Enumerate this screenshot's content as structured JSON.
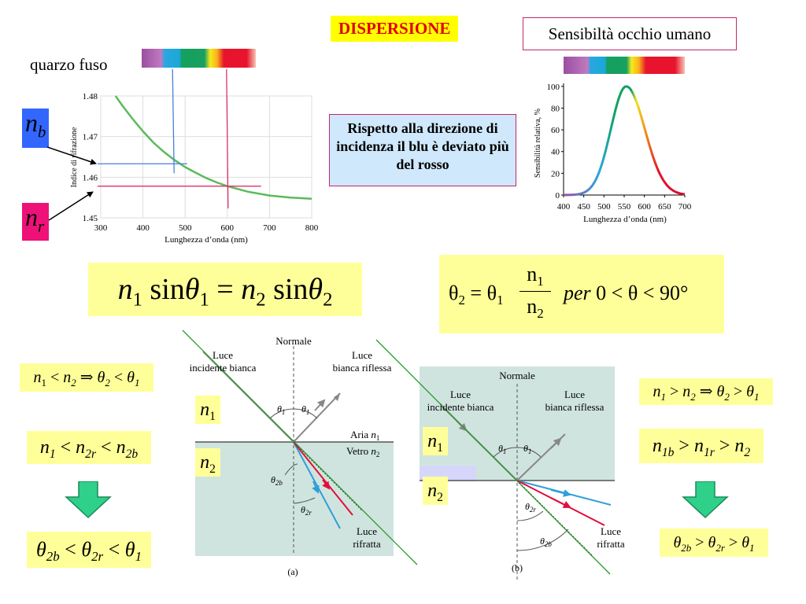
{
  "title": "DISPERSIONE",
  "eye_box_label": "Sensibiltà occhio umano",
  "material_label": "quarzo fuso",
  "note": "Rispetto alla direzione di incidenza il blu è deviato più del rosso",
  "n_b": {
    "base": "n",
    "sub": "b"
  },
  "n_r": {
    "base": "n",
    "sub": "r"
  },
  "refraction_chart": {
    "type": "line",
    "ylabel": "Indice di rifrazione",
    "xlabel": "Lunghezza d’onda (nm)",
    "x_ticks": [
      "300",
      "400",
      "500",
      "600",
      "700",
      "800"
    ],
    "y_ticks": [
      "1.48",
      "1.47",
      "1.46",
      "1.45"
    ],
    "xlim": [
      300,
      800
    ],
    "ylim": [
      1.45,
      1.48
    ],
    "curve_x": [
      335,
      350,
      375,
      400,
      425,
      450,
      475,
      500,
      525,
      550,
      575,
      600,
      650,
      700,
      750,
      800
    ],
    "curve_y": [
      1.48,
      1.4778,
      1.4744,
      1.4713,
      1.4685,
      1.4662,
      1.4642,
      1.4625,
      1.4611,
      1.4598,
      1.4587,
      1.4578,
      1.4564,
      1.4555,
      1.455,
      1.4547
    ],
    "blue_marker": {
      "x": 472,
      "y": 1.4633
    },
    "red_marker": {
      "x": 600,
      "y": 1.4578
    }
  },
  "eye_chart": {
    "type": "line",
    "ylabel": "Sensibilità relativa, %",
    "xlabel": "Lunghezza d’onda (nm)",
    "x_ticks": [
      "400",
      "450",
      "500",
      "550",
      "600",
      "650",
      "700"
    ],
    "y_ticks": [
      "0",
      "20",
      "40",
      "60",
      "80",
      "100"
    ],
    "xlim": [
      400,
      700
    ],
    "ylim": [
      0,
      110
    ],
    "peak_x": 555,
    "peak_y": 100
  },
  "snell": {
    "n1": "n",
    "s1": "1",
    "sin": "sin",
    "theta": "θ",
    "eq": "=",
    "n2": "n",
    "s2": "2"
  },
  "approx": {
    "lhs": "θ",
    "lhs_sub": "2",
    "eq": "=",
    "th1": "θ",
    "th1_sub": "1",
    "num": "n",
    "num_sub": "1",
    "den": "n",
    "den_sub": "2",
    "per": "per",
    "cond": "0 < θ < 90°"
  },
  "left_ineq1": {
    "a": "n",
    "a_sub": "1",
    "op1": " < ",
    "b": "n",
    "b_sub": "2",
    "imp": " ⇒ ",
    "c": "θ",
    "c_sub": "2",
    "op2": " < ",
    "d": "θ",
    "d_sub": "1"
  },
  "left_ineq2": {
    "a": "n",
    "a_sub": "1",
    "op1": " < ",
    "b": "n",
    "b_sub": "2r",
    "op2": " < ",
    "c": "n",
    "c_sub": "2b"
  },
  "left_ineq3": {
    "a": "θ",
    "a_sub": "2b",
    "op1": " < ",
    "b": "θ",
    "b_sub": "2r",
    "op2": " < ",
    "c": "θ",
    "c_sub": "1"
  },
  "right_ineq1": {
    "a": "n",
    "a_sub": "1",
    "op1": " > ",
    "b": "n",
    "b_sub": "2",
    "imp": " ⇒ ",
    "c": "θ",
    "c_sub": "2",
    "op2": " > ",
    "d": "θ",
    "d_sub": "1"
  },
  "right_ineq2": {
    "a": "n",
    "a_sub": "1b",
    "op1": " > ",
    "b": "n",
    "b_sub": "1r",
    "op2": " > ",
    "c": "n",
    "c_sub": "2"
  },
  "right_ineq3": {
    "a": "θ",
    "a_sub": "2b",
    "op1": " > ",
    "b": "θ",
    "b_sub": "2r",
    "op2": " > ",
    "c": "θ",
    "c_sub": "1"
  },
  "diag_a": {
    "normal": "Normale",
    "incident": [
      "Luce",
      "incidente bianca"
    ],
    "reflected": [
      "Luce",
      "bianca riflessa"
    ],
    "theta1": "θ",
    "theta1_sub": "1",
    "aria": "Aria",
    "vetro": "Vetro",
    "n1": "n",
    "n1_sub": "1",
    "n2": "n",
    "n2_sub": "2",
    "theta2b": "θ",
    "theta2b_sub": "2b",
    "theta2r": "θ",
    "theta2r_sub": "2r",
    "refracted": [
      "Luce",
      "rifratta"
    ],
    "caption": "(a)"
  },
  "diag_b": {
    "normal": "Normale",
    "incident": [
      "Luce",
      "incidente bianca"
    ],
    "reflected": [
      "Luce",
      "bianca riflessa"
    ],
    "theta1": "θ",
    "theta1_sub": "1",
    "theta2r": "θ",
    "theta2r_sub": "2r",
    "theta2b": "θ",
    "theta2b_sub": "2b",
    "refracted": [
      "Luce",
      "rifratta"
    ],
    "caption": "(b)"
  },
  "label_n1": {
    "base": "n",
    "sub": "1"
  },
  "label_n2": {
    "base": "n",
    "sub": "2"
  },
  "colors": {
    "blue": "#2e9fd8",
    "red": "#e0103a",
    "green": "#33a851",
    "medium": "#cfe4df",
    "yellow": "#ffff99",
    "arrow": "#2fd08a"
  }
}
